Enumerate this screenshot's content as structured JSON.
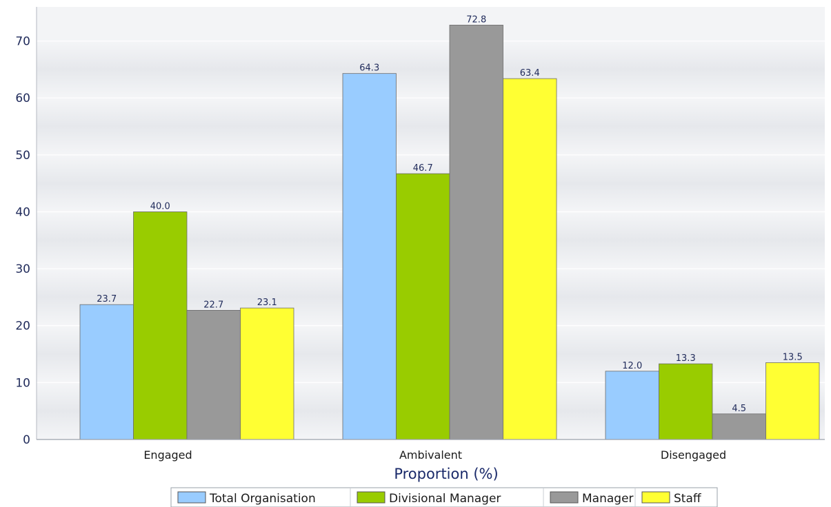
{
  "chart_data": {
    "type": "bar",
    "title": "",
    "xlabel": "Proportion (%)",
    "ylabel": "",
    "categories": [
      "Engaged",
      "Ambivalent",
      "Disengaged"
    ],
    "ylim": [
      0,
      76
    ],
    "yticks": [
      0,
      10,
      20,
      30,
      40,
      50,
      60,
      70
    ],
    "grid": true,
    "legend_position": "bottom",
    "series": [
      {
        "name": "Total Organisation",
        "values": [
          23.7,
          64.3,
          12.0
        ],
        "labels": [
          "23.7",
          "64.3",
          "12.0"
        ],
        "color": "#99ccff"
      },
      {
        "name": "Divisional Manager",
        "values": [
          40.0,
          46.7,
          13.3
        ],
        "labels": [
          "40.0",
          "46.7",
          "13.3"
        ],
        "color": "#99cc00"
      },
      {
        "name": "Manager",
        "values": [
          22.7,
          72.8,
          4.5
        ],
        "labels": [
          "22.7",
          "72.8",
          "4.5"
        ],
        "color": "#999999"
      },
      {
        "name": "Staff",
        "values": [
          23.1,
          63.4,
          13.5
        ],
        "labels": [
          "23.1",
          "63.4",
          "13.5"
        ],
        "color": "#ffff33"
      }
    ]
  }
}
